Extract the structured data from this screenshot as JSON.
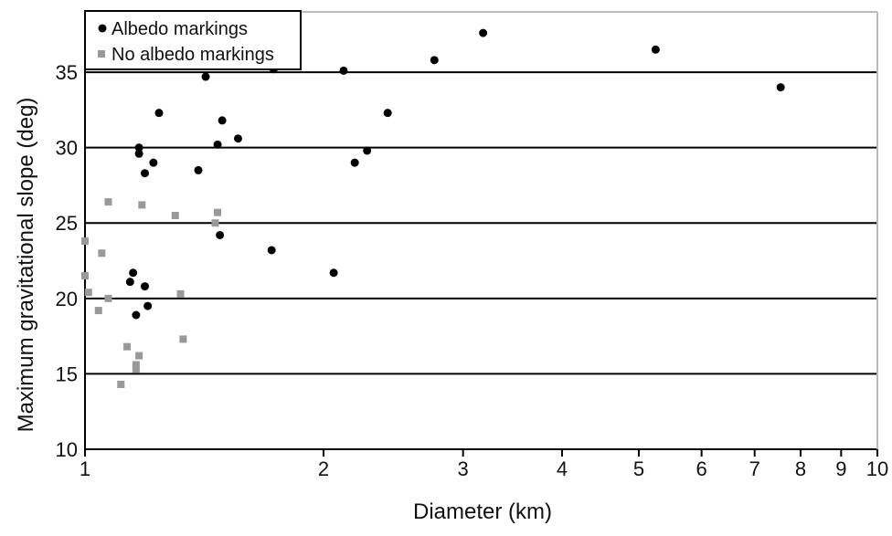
{
  "chart_data": {
    "type": "scatter",
    "title": "",
    "xlabel": "Diameter (km)",
    "ylabel": "Maximum gravitational slope (deg)",
    "xscale": "log",
    "xlim": [
      1,
      10
    ],
    "ylim": [
      10,
      39
    ],
    "x_ticks": [
      "1",
      "2",
      "3",
      "4",
      "5",
      "6",
      "7",
      "8",
      "9",
      "10"
    ],
    "y_ticks": [
      "10",
      "15",
      "20",
      "25",
      "30",
      "35"
    ],
    "grid": "horizontal lines at 15, 20, 25, 30, 35",
    "legend_position": "top-left",
    "series": [
      {
        "name": "Albedo markings",
        "color": "#000000",
        "marker": "circle",
        "points": [
          [
            1.17,
            30.0
          ],
          [
            1.17,
            29.6
          ],
          [
            1.24,
            32.3
          ],
          [
            1.22,
            29.0
          ],
          [
            1.19,
            28.3
          ],
          [
            1.15,
            21.7
          ],
          [
            1.14,
            21.1
          ],
          [
            1.19,
            20.8
          ],
          [
            1.16,
            18.9
          ],
          [
            1.2,
            19.5
          ],
          [
            1.39,
            28.5
          ],
          [
            1.42,
            34.7
          ],
          [
            1.47,
            30.2
          ],
          [
            1.49,
            31.8
          ],
          [
            1.56,
            30.6
          ],
          [
            1.48,
            24.2
          ],
          [
            1.73,
            35.2
          ],
          [
            1.72,
            23.2
          ],
          [
            2.06,
            21.7
          ],
          [
            2.12,
            35.1
          ],
          [
            2.19,
            29.0
          ],
          [
            2.27,
            29.8
          ],
          [
            2.41,
            32.3
          ],
          [
            2.76,
            35.8
          ],
          [
            3.18,
            37.6
          ],
          [
            5.25,
            36.5
          ],
          [
            7.55,
            34.0
          ]
        ]
      },
      {
        "name": "No albedo markings",
        "color": "#999999",
        "marker": "square",
        "points": [
          [
            1.0,
            23.8
          ],
          [
            1.0,
            21.5
          ],
          [
            1.01,
            20.4
          ],
          [
            1.04,
            19.2
          ],
          [
            1.05,
            23.0
          ],
          [
            1.07,
            26.4
          ],
          [
            1.07,
            20.0
          ],
          [
            1.11,
            14.3
          ],
          [
            1.13,
            16.8
          ],
          [
            1.16,
            15.6
          ],
          [
            1.16,
            15.3
          ],
          [
            1.17,
            16.2
          ],
          [
            1.18,
            26.2
          ],
          [
            1.3,
            25.5
          ],
          [
            1.32,
            20.3
          ],
          [
            1.33,
            17.3
          ],
          [
            1.47,
            25.7
          ],
          [
            1.46,
            25.0
          ]
        ]
      }
    ]
  }
}
